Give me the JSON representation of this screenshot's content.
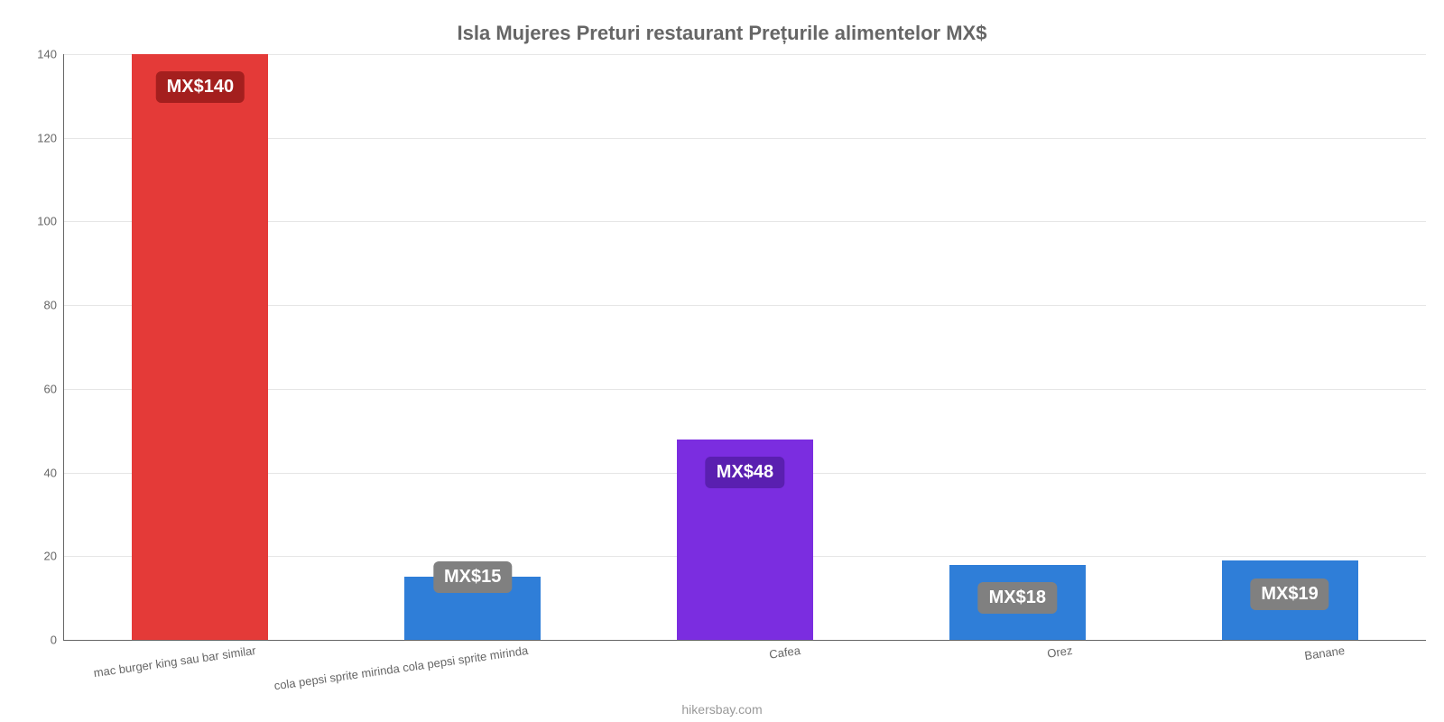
{
  "chart": {
    "type": "bar",
    "title": "Isla Mujeres Preturi restaurant Prețurile alimentelor MX$",
    "title_fontsize": 22,
    "title_color": "#666666",
    "background_color": "#ffffff",
    "grid_color": "#e6e6e6",
    "axis_color": "#666666",
    "tick_font_color": "#666666",
    "tick_fontsize": 13,
    "ylim": [
      0,
      140
    ],
    "ytick_step": 20,
    "yticks": [
      0,
      20,
      40,
      60,
      80,
      100,
      120,
      140
    ],
    "bar_width": 0.5,
    "categories": [
      "mac burger king sau bar similar",
      "cola pepsi sprite mirinda cola pepsi sprite mirinda",
      "Cafea",
      "Orez",
      "Banane"
    ],
    "values": [
      140,
      15,
      48,
      18,
      19
    ],
    "value_labels": [
      "MX$140",
      "MX$15",
      "MX$48",
      "MX$18",
      "MX$19"
    ],
    "bar_colors": [
      "#e43a38",
      "#2f7ed8",
      "#7b2de0",
      "#2f7ed8",
      "#2f7ed8"
    ],
    "badge_bg_colors": [
      "#a41f1e",
      "#808080",
      "#5a1fb0",
      "#808080",
      "#808080"
    ],
    "badge_text_color": "#ffffff",
    "badge_fontsize": 20,
    "xaxis_rotation_deg": -8
  },
  "attribution": "hikersbay.com"
}
